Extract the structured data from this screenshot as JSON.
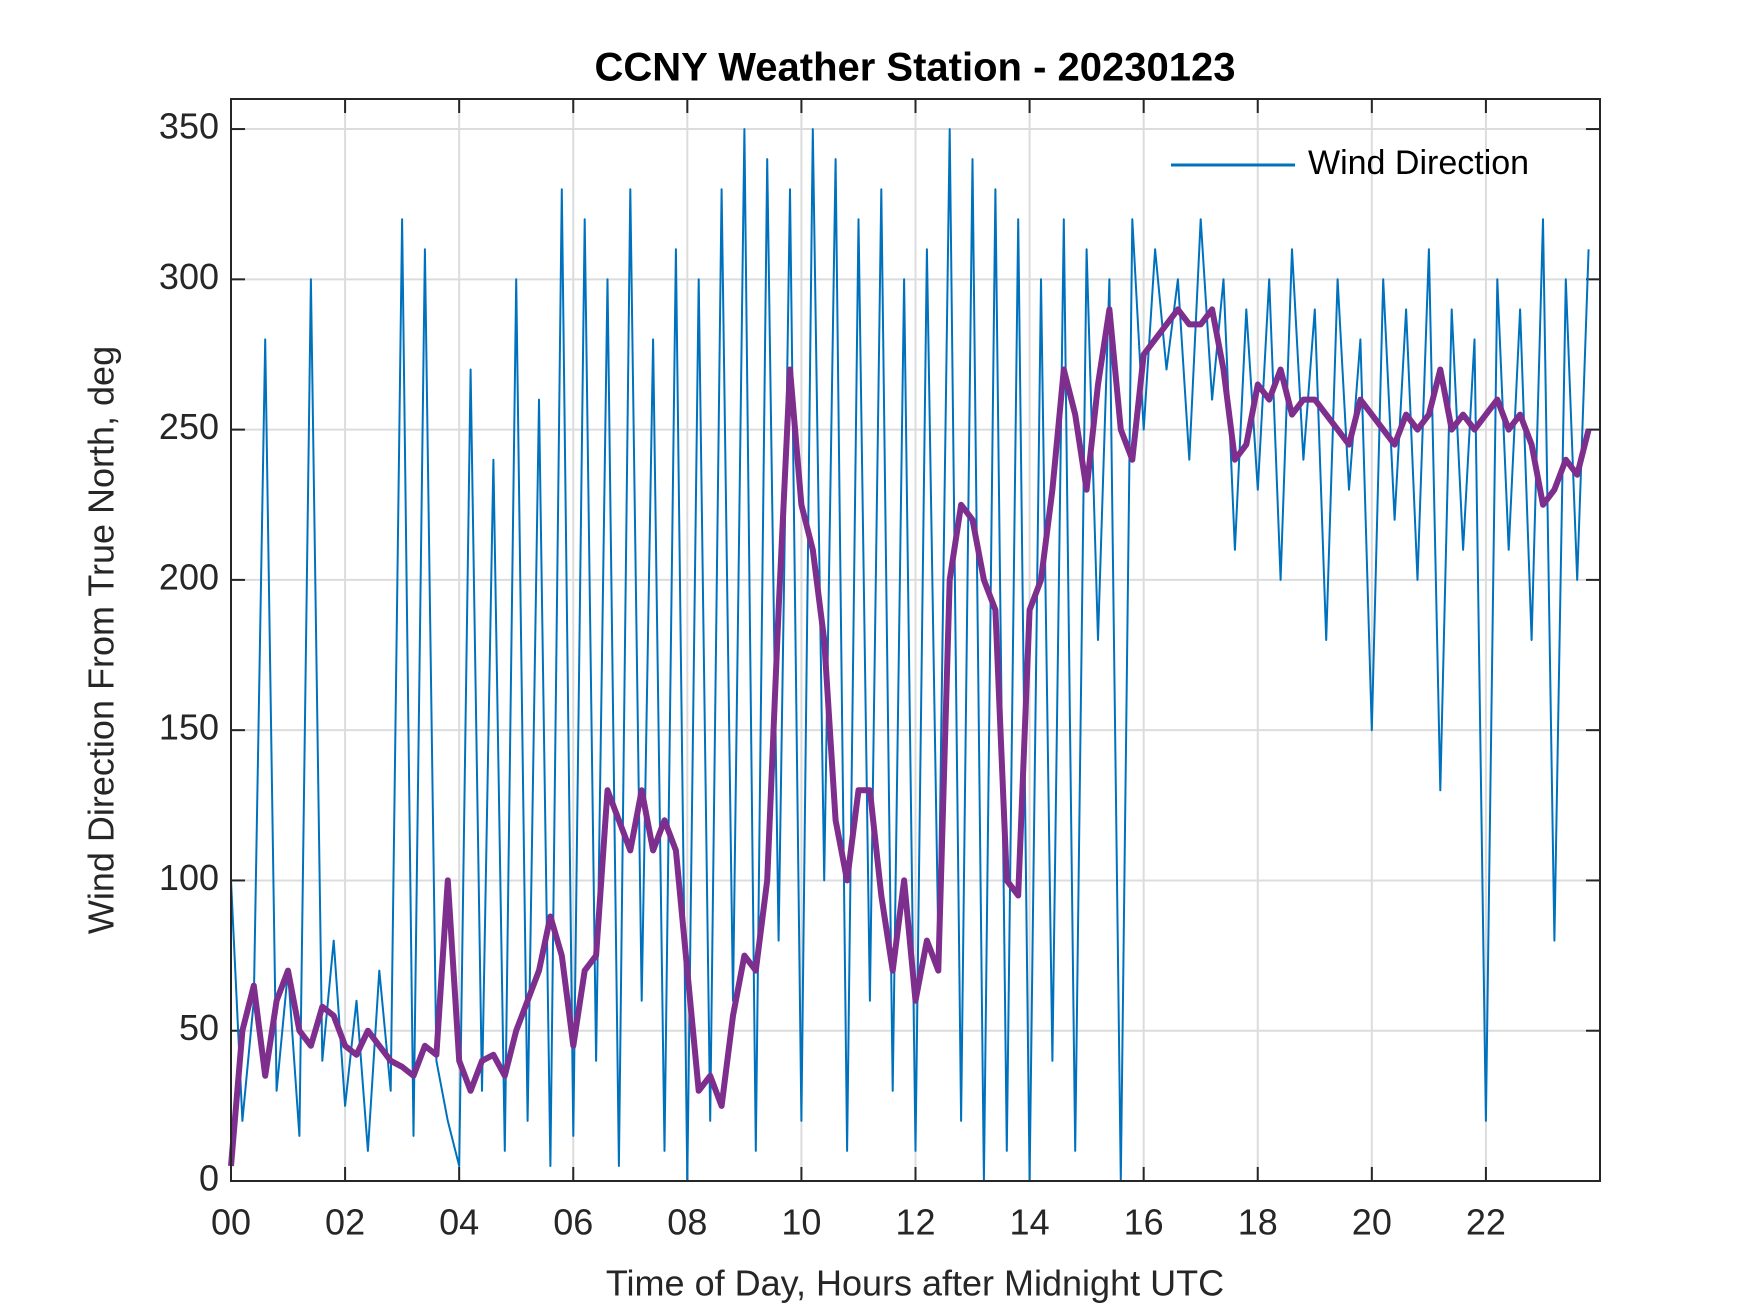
{
  "chart_data": {
    "type": "line",
    "title": "CCNY Weather Station - 20230123",
    "xlabel": "Time of Day, Hours after Midnight UTC",
    "ylabel": "Wind Direction From True North, deg",
    "x": [
      0,
      0.2,
      0.4,
      0.6,
      0.8,
      1,
      1.2,
      1.4,
      1.6,
      1.8,
      2,
      2.2,
      2.4,
      2.6,
      2.8,
      3,
      3.2,
      3.4,
      3.6,
      3.8,
      4,
      4.2,
      4.4,
      4.6,
      4.8,
      5,
      5.2,
      5.4,
      5.6,
      5.8,
      6,
      6.2,
      6.4,
      6.6,
      6.8,
      7,
      7.2,
      7.4,
      7.6,
      7.8,
      8,
      8.2,
      8.4,
      8.6,
      8.8,
      9,
      9.2,
      9.4,
      9.6,
      9.8,
      10,
      10.2,
      10.4,
      10.6,
      10.8,
      11,
      11.2,
      11.4,
      11.6,
      11.8,
      12,
      12.2,
      12.4,
      12.6,
      12.8,
      13,
      13.2,
      13.4,
      13.6,
      13.8,
      14,
      14.2,
      14.4,
      14.6,
      14.8,
      15,
      15.2,
      15.4,
      15.6,
      15.8,
      16,
      16.2,
      16.4,
      16.6,
      16.8,
      17,
      17.2,
      17.4,
      17.6,
      17.8,
      18,
      18.2,
      18.4,
      18.6,
      18.8,
      19,
      19.2,
      19.4,
      19.6,
      19.8,
      20,
      20.2,
      20.4,
      20.6,
      20.8,
      21,
      21.2,
      21.4,
      21.6,
      21.8,
      22,
      22.2,
      22.4,
      22.6,
      22.8,
      23,
      23.2,
      23.4,
      23.6,
      23.8
    ],
    "series": [
      {
        "name": "Wind Direction",
        "color": "#0072bd",
        "values": [
          100,
          20,
          60,
          280,
          30,
          70,
          15,
          300,
          40,
          80,
          25,
          60,
          10,
          70,
          30,
          320,
          15,
          310,
          40,
          20,
          5,
          270,
          30,
          240,
          10,
          300,
          20,
          260,
          5,
          330,
          15,
          320,
          40,
          300,
          5,
          330,
          60,
          280,
          10,
          310,
          0,
          300,
          20,
          330,
          60,
          350,
          10,
          340,
          80,
          330,
          20,
          350,
          100,
          340,
          10,
          320,
          60,
          330,
          30,
          300,
          10,
          310,
          80,
          350,
          20,
          340,
          0,
          330,
          10,
          320,
          0,
          300,
          40,
          320,
          10,
          310,
          180,
          300,
          0,
          320,
          250,
          310,
          270,
          300,
          240,
          320,
          260,
          300,
          210,
          290,
          230,
          300,
          200,
          310,
          240,
          290,
          180,
          300,
          230,
          280,
          150,
          300,
          220,
          290,
          200,
          310,
          130,
          290,
          210,
          280,
          20,
          300,
          210,
          290,
          180,
          320,
          80,
          300,
          200,
          310
        ]
      },
      {
        "color": "#7e2f8e",
        "values": [
          5,
          50,
          65,
          35,
          60,
          70,
          50,
          45,
          58,
          55,
          45,
          42,
          50,
          45,
          40,
          38,
          35,
          45,
          42,
          100,
          40,
          30,
          40,
          42,
          35,
          50,
          60,
          70,
          88,
          75,
          45,
          70,
          75,
          130,
          120,
          110,
          130,
          110,
          120,
          110,
          70,
          30,
          35,
          25,
          55,
          75,
          70,
          100,
          190,
          270,
          225,
          210,
          180,
          120,
          100,
          130,
          130,
          95,
          70,
          100,
          60,
          80,
          70,
          200,
          225,
          220,
          200,
          190,
          100,
          95,
          190,
          200,
          230,
          270,
          255,
          230,
          265,
          290,
          250,
          240,
          275,
          280,
          285,
          290,
          285,
          285,
          290,
          270,
          240,
          245,
          265,
          260,
          270,
          255,
          260,
          260,
          255,
          250,
          245,
          260,
          255,
          250,
          245,
          255,
          250,
          255,
          270,
          250,
          255,
          250,
          255,
          260,
          250,
          255,
          245,
          225,
          230,
          240,
          235,
          250
        ]
      }
    ],
    "xlim": [
      0,
      24
    ],
    "xticks": [
      {
        "value": 0,
        "label": "00"
      },
      {
        "value": 2,
        "label": "02"
      },
      {
        "value": 4,
        "label": "04"
      },
      {
        "value": 6,
        "label": "06"
      },
      {
        "value": 8,
        "label": "08"
      },
      10,
      12,
      14,
      16,
      18,
      20,
      22
    ],
    "ylim": [
      0,
      360
    ],
    "yticks": [
      0,
      50,
      100,
      150,
      200,
      250,
      300,
      350
    ],
    "grid": true,
    "legend": "upper right"
  }
}
